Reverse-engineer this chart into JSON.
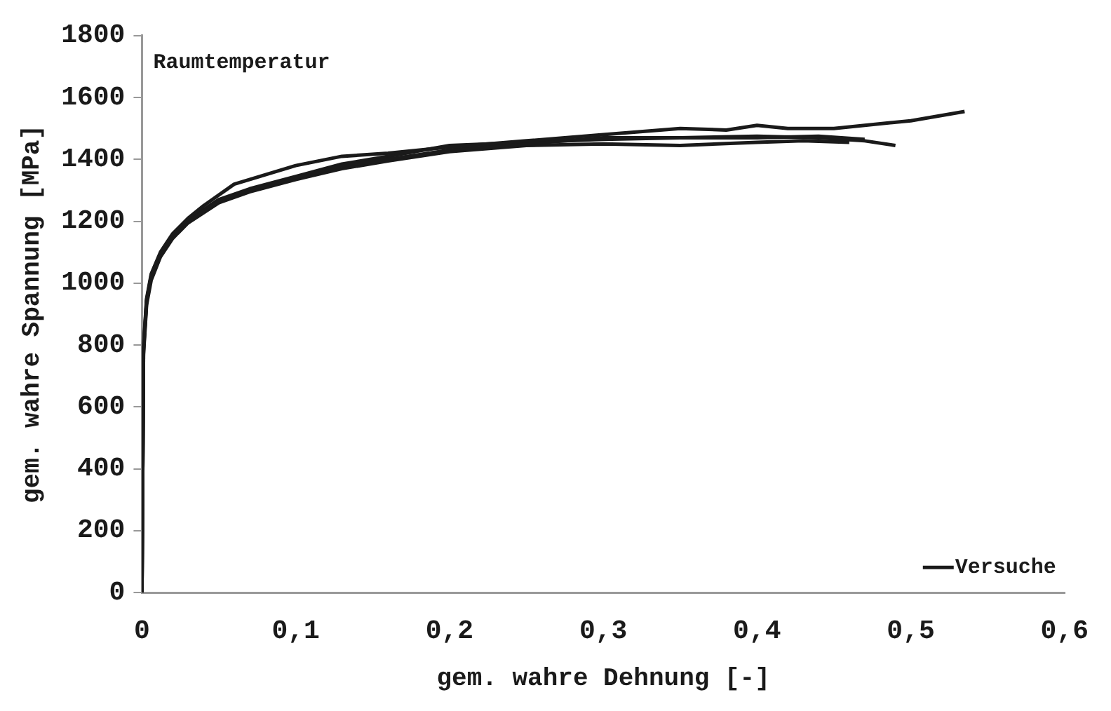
{
  "chart_data": {
    "type": "line",
    "xlabel": "gem. wahre Dehnung [-]",
    "ylabel": "gem. wahre Spannung [MPa]",
    "annotations": [
      "Raumtemperatur"
    ],
    "xlim": [
      0,
      0.6
    ],
    "xticks": [
      {
        "value": 0,
        "label": "0"
      },
      {
        "value": 0.1,
        "label": "0,1"
      },
      {
        "value": 0.2,
        "label": "0,2"
      },
      {
        "value": 0.3,
        "label": "0,3"
      },
      {
        "value": 0.4,
        "label": "0,4"
      },
      {
        "value": 0.5,
        "label": "0,5"
      },
      {
        "value": 0.6,
        "label": "0,6"
      }
    ],
    "ylim": [
      0,
      1800
    ],
    "yticks": [
      0,
      200,
      400,
      600,
      800,
      1000,
      1200,
      1400,
      1600,
      1800
    ],
    "grid": false,
    "legend": "bottom right",
    "marker": "none",
    "line_style": "solid",
    "series": [
      {
        "name": "Versuche",
        "color": "#1a1a1a",
        "x": [
          0,
          0.001,
          0.003,
          0.006,
          0.012,
          0.02,
          0.03,
          0.04,
          0.06,
          0.08,
          0.1,
          0.13,
          0.16,
          0.2,
          0.25,
          0.3,
          0.35,
          0.38,
          0.4,
          0.42,
          0.45,
          0.5,
          0.535
        ],
        "values": [
          0,
          800,
          950,
          1030,
          1100,
          1160,
          1210,
          1250,
          1320,
          1350,
          1380,
          1410,
          1420,
          1440,
          1460,
          1480,
          1500,
          1495,
          1510,
          1500,
          1500,
          1525,
          1555
        ]
      },
      {
        "color": "#1a1a1a",
        "x": [
          0,
          0.001,
          0.003,
          0.006,
          0.012,
          0.02,
          0.03,
          0.05,
          0.07,
          0.1,
          0.13,
          0.16,
          0.2,
          0.25,
          0.3,
          0.35,
          0.4,
          0.44,
          0.47,
          0.49
        ],
        "values": [
          0,
          780,
          940,
          1020,
          1090,
          1150,
          1200,
          1265,
          1300,
          1340,
          1380,
          1400,
          1430,
          1450,
          1470,
          1470,
          1475,
          1470,
          1460,
          1445
        ]
      },
      {
        "color": "#1a1a1a",
        "x": [
          0,
          0.001,
          0.003,
          0.006,
          0.012,
          0.02,
          0.03,
          0.05,
          0.07,
          0.1,
          0.13,
          0.16,
          0.2,
          0.25,
          0.3,
          0.35,
          0.4,
          0.43,
          0.46
        ],
        "values": [
          0,
          770,
          930,
          1010,
          1085,
          1145,
          1195,
          1260,
          1295,
          1335,
          1370,
          1395,
          1425,
          1445,
          1450,
          1445,
          1455,
          1460,
          1455
        ]
      },
      {
        "color": "#1a1a1a",
        "x": [
          0,
          0.001,
          0.003,
          0.006,
          0.012,
          0.02,
          0.03,
          0.05,
          0.07,
          0.1,
          0.13,
          0.16,
          0.2,
          0.25,
          0.3,
          0.35,
          0.4,
          0.44,
          0.47
        ],
        "values": [
          0,
          790,
          945,
          1025,
          1095,
          1155,
          1205,
          1270,
          1305,
          1345,
          1385,
          1410,
          1445,
          1455,
          1465,
          1470,
          1470,
          1475,
          1465
        ]
      }
    ]
  }
}
